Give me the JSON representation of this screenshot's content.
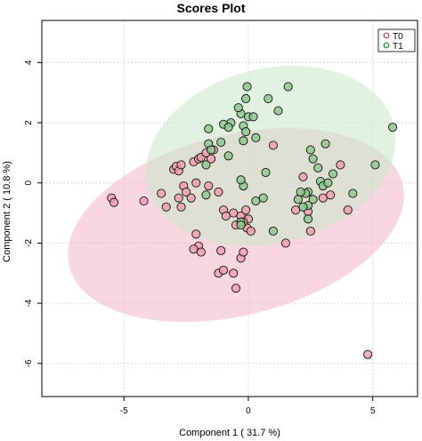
{
  "chart_data": {
    "type": "scatter",
    "title": "Scores Plot",
    "xlabel": "Component 1 ( 31.7 %)",
    "ylabel": "Component 2 ( 10.8 %)",
    "xlim": [
      -8.3,
      6.8
    ],
    "ylim": [
      -7.1,
      5.4
    ],
    "xticks": [
      -5,
      0,
      5
    ],
    "yticks": [
      -6,
      -4,
      -2,
      0,
      2,
      4
    ],
    "grid": true,
    "legend_position": "top-right",
    "series": [
      {
        "name": "T0",
        "fill": "#f0a0b0",
        "stroke": "#e0305a",
        "ellipse_fill": "#f4b6c6",
        "ellipse": {
          "cx": -0.5,
          "cy": -1.4,
          "rx": 6.9,
          "ry": 3.0,
          "angle": 14
        },
        "points": [
          [
            -5.5,
            -0.5
          ],
          [
            -5.4,
            -0.65
          ],
          [
            -4.2,
            -0.6
          ],
          [
            -3.5,
            -0.35
          ],
          [
            -3.3,
            -0.8
          ],
          [
            -3.0,
            0.45
          ],
          [
            -2.9,
            0.55
          ],
          [
            -2.8,
            0.4
          ],
          [
            -2.7,
            0.6
          ],
          [
            -2.6,
            -0.1
          ],
          [
            -2.5,
            -0.3
          ],
          [
            -2.3,
            -0.5
          ],
          [
            -2.1,
            0.0
          ],
          [
            -2.2,
            0.7
          ],
          [
            -2.0,
            0.8
          ],
          [
            -2.8,
            -0.5
          ],
          [
            -2.7,
            -0.8
          ],
          [
            -1.9,
            0.85
          ],
          [
            -1.7,
            1.0
          ],
          [
            -1.5,
            0.8
          ],
          [
            -1.4,
            1.1
          ],
          [
            -1.6,
            -0.1
          ],
          [
            -1.2,
            -0.3
          ],
          [
            -1.0,
            -0.9
          ],
          [
            -0.9,
            -1.1
          ],
          [
            -0.6,
            -1.0
          ],
          [
            -0.5,
            -1.4
          ],
          [
            -0.3,
            -1.1
          ],
          [
            -0.1,
            -0.9
          ],
          [
            0.0,
            -1.2
          ],
          [
            -0.05,
            -1.5
          ],
          [
            0.1,
            -1.6
          ],
          [
            -0.2,
            -1.3
          ],
          [
            -2.1,
            -1.7
          ],
          [
            -2.0,
            -2.1
          ],
          [
            -2.2,
            -2.2
          ],
          [
            -1.9,
            -2.3
          ],
          [
            -1.1,
            -2.25
          ],
          [
            -0.3,
            -2.5
          ],
          [
            -0.2,
            -2.3
          ],
          [
            -1.2,
            -3.0
          ],
          [
            -1.0,
            -2.9
          ],
          [
            -0.6,
            -3.0
          ],
          [
            -0.5,
            -3.5
          ],
          [
            1.5,
            -2.0
          ],
          [
            1.9,
            -0.9
          ],
          [
            2.4,
            -0.95
          ],
          [
            2.5,
            -1.6
          ],
          [
            3.0,
            -0.5
          ],
          [
            3.3,
            -0.4
          ],
          [
            3.7,
            0.6
          ],
          [
            4.0,
            -0.9
          ],
          [
            1.0,
            1.25
          ],
          [
            2.2,
            0.2
          ],
          [
            4.8,
            -5.7
          ]
        ]
      },
      {
        "name": "T1",
        "fill": "#8fc88f",
        "stroke": "#1e8f2e",
        "ellipse_fill": "#c8e8c8",
        "ellipse": {
          "cx": 0.9,
          "cy": 0.9,
          "rx": 5.1,
          "ry": 2.9,
          "angle": 14
        },
        "points": [
          [
            -0.05,
            3.2
          ],
          [
            0.8,
            2.8
          ],
          [
            1.6,
            3.2
          ],
          [
            -0.1,
            2.8
          ],
          [
            -0.3,
            2.3
          ],
          [
            -0.4,
            2.5
          ],
          [
            0.0,
            2.2
          ],
          [
            0.2,
            2.2
          ],
          [
            1.2,
            2.4
          ],
          [
            -0.7,
            2.0
          ],
          [
            -1.0,
            1.95
          ],
          [
            -0.2,
            1.9
          ],
          [
            -1.6,
            1.8
          ],
          [
            -0.1,
            1.7
          ],
          [
            0.3,
            1.5
          ],
          [
            -1.6,
            1.3
          ],
          [
            -1.1,
            1.35
          ],
          [
            -0.2,
            1.4
          ],
          [
            -1.5,
            1.1
          ],
          [
            -1.7,
            0.6
          ],
          [
            -0.8,
            0.9
          ],
          [
            0.7,
            0.35
          ],
          [
            2.5,
            1.1
          ],
          [
            2.6,
            0.8
          ],
          [
            2.8,
            0.5
          ],
          [
            3.1,
            1.3
          ],
          [
            3.4,
            0.3
          ],
          [
            2.9,
            0.05
          ],
          [
            3.0,
            -0.1
          ],
          [
            3.2,
            0.0
          ],
          [
            2.4,
            -0.3
          ],
          [
            2.3,
            -0.35
          ],
          [
            2.1,
            -0.3
          ],
          [
            2.6,
            -0.55
          ],
          [
            2.4,
            -0.75
          ],
          [
            2.2,
            -0.8
          ],
          [
            -0.2,
            -0.1
          ],
          [
            -0.3,
            0.1
          ],
          [
            -1.7,
            -0.4
          ],
          [
            0.6,
            -0.5
          ],
          [
            0.3,
            -0.6
          ],
          [
            -0.3,
            -1.3
          ],
          [
            -0.3,
            -1.4
          ],
          [
            1.0,
            -1.6
          ],
          [
            2.4,
            -1.2
          ],
          [
            2.0,
            -0.55
          ],
          [
            4.2,
            -0.35
          ],
          [
            5.1,
            0.6
          ],
          [
            5.8,
            1.85
          ],
          [
            -0.8,
            1.85
          ]
        ]
      }
    ]
  }
}
